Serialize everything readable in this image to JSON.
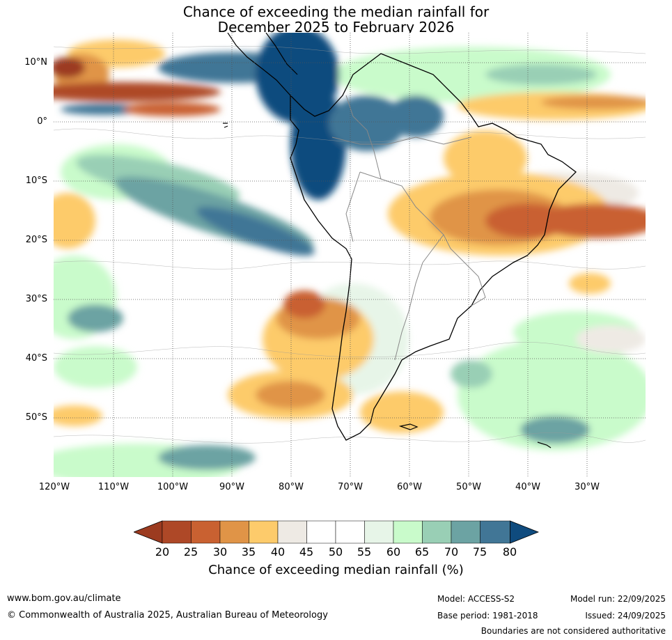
{
  "title": {
    "line1": "Chance of exceeding the median rainfall for",
    "line2": "December 2025 to February 2026"
  },
  "map": {
    "latitudes": [
      "10°N",
      "0°",
      "10°S",
      "20°S",
      "30°S",
      "40°S",
      "50°S"
    ],
    "longitudes": [
      "120°W",
      "110°W",
      "100°W",
      "90°W",
      "80°W",
      "70°W",
      "60°W",
      "50°W",
      "40°W",
      "30°W"
    ],
    "colors": {
      "land": "#ffffff",
      "coast": "#000000",
      "borders": "#888888",
      "grid": "#555555"
    }
  },
  "colorbar": {
    "title": "Chance of exceeding median rainfall (%)",
    "ticks": [
      "20",
      "25",
      "30",
      "35",
      "40",
      "45",
      "50",
      "55",
      "60",
      "65",
      "70",
      "75",
      "80"
    ],
    "colors": [
      "#9c3b20",
      "#ae4827",
      "#c96131",
      "#e09447",
      "#fdcb6b",
      "#eeeae4",
      "#ffffff",
      "#ffffff",
      "#e7f5e8",
      "#c9fbcb",
      "#99cfb5",
      "#6ca3a3",
      "#417696",
      "#0f4b7e"
    ]
  },
  "footer": {
    "website": "www.bom.gov.au/climate",
    "copyright": "© Commonwealth of Australia 2025, Australian Bureau of Meteorology",
    "model": "Model: ACCESS-S2",
    "base_period": "Base period: 1981-2018",
    "model_run": "Model run: 22/09/2025",
    "issued": "Issued: 24/09/2025",
    "disclaimer": "Boundaries are not considered authoritative"
  }
}
